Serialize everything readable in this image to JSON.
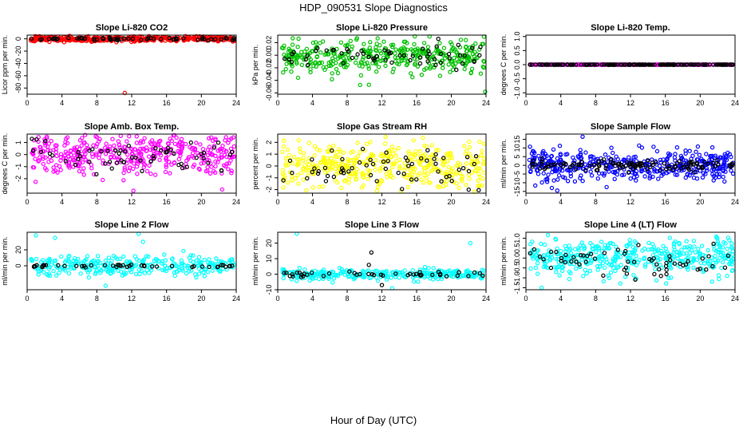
{
  "figure": {
    "title": "HDP_090531  Slope Diagnostics",
    "xlabel": "Hour of Day (UTC)"
  },
  "chart_data": [
    {
      "type": "scatter",
      "title": "Slope Li-820 CO2",
      "ylabel": "Licor ppm per min.",
      "xlim": [
        0,
        24
      ],
      "ylim": [
        -90,
        6
      ],
      "xticks": [
        0,
        4,
        8,
        12,
        16,
        20,
        24
      ],
      "yticks": [
        0,
        -20,
        -40,
        -60,
        -80
      ],
      "color": "#ff0000",
      "center": 0,
      "spread": 2.2,
      "black_center": 0,
      "black_spread": 1.2,
      "n_main": 420,
      "n_black": 60,
      "seed": 11,
      "outliers": [
        {
          "x": 11.2,
          "y": -88,
          "c": "#ff0000"
        }
      ]
    },
    {
      "type": "scatter",
      "title": "Slope Li-820 Pressure",
      "ylabel": "kPa per min.",
      "xlim": [
        0,
        24
      ],
      "ylim": [
        -0.062,
        0.032
      ],
      "xticks": [
        0,
        4,
        8,
        12,
        16,
        20,
        24
      ],
      "yticks": [
        0.02,
        0.0,
        -0.02,
        -0.04,
        -0.06
      ],
      "color": "#00c000",
      "center": 0.0,
      "spread": 0.013,
      "black_center": -0.001,
      "black_spread": 0.008,
      "n_main": 400,
      "n_black": 60,
      "seed": 23,
      "outliers": [
        {
          "x": 23.9,
          "y": -0.058,
          "c": "#00c000"
        },
        {
          "x": 10.5,
          "y": -0.047,
          "c": "#00c000"
        },
        {
          "x": 18.5,
          "y": 0.026,
          "c": "#000000"
        }
      ]
    },
    {
      "type": "scatter",
      "title": "Slope Li-820 Temp.",
      "ylabel": "degrees C per min.",
      "xlim": [
        0,
        24
      ],
      "ylim": [
        -1.05,
        1.05
      ],
      "xticks": [
        0,
        4,
        8,
        12,
        16,
        20,
        24
      ],
      "yticks": [
        1.0,
        0.5,
        0.0,
        -0.5,
        -1.0
      ],
      "color": "#ff00ff",
      "center": 0.0,
      "spread": 0.003,
      "black_center": 0.0,
      "black_spread": 0.002,
      "n_main": 300,
      "n_black": 180,
      "seed": 37,
      "outliers": []
    },
    {
      "type": "scatter",
      "title": "Slope Amb. Box Temp.",
      "ylabel": "degrees C per min.",
      "xlim": [
        0,
        24
      ],
      "ylim": [
        -3.2,
        1.7
      ],
      "xticks": [
        0,
        4,
        8,
        12,
        16,
        20,
        24
      ],
      "yticks": [
        1,
        0,
        -1,
        -2
      ],
      "color": "#ff00ff",
      "center": 0.0,
      "spread": 0.9,
      "black_center": 0.0,
      "black_spread": 0.7,
      "n_main": 420,
      "n_black": 60,
      "seed": 41,
      "outliers": [
        {
          "x": 12.2,
          "y": -3.0,
          "c": "#ff00ff"
        }
      ]
    },
    {
      "type": "scatter",
      "title": "Slope Gas Stream RH",
      "ylabel": "percent per min.",
      "xlim": [
        0,
        24
      ],
      "ylim": [
        -2.3,
        2.7
      ],
      "xticks": [
        0,
        4,
        8,
        12,
        16,
        20,
        24
      ],
      "yticks": [
        2,
        1,
        0,
        -1,
        -2
      ],
      "color": "#ffff00",
      "center": 0.0,
      "spread": 1.0,
      "black_center": 0.0,
      "black_spread": 0.8,
      "n_main": 420,
      "n_black": 60,
      "seed": 53,
      "outliers": [
        {
          "x": 22.0,
          "y": -2.0,
          "c": "#000000"
        }
      ]
    },
    {
      "type": "scatter",
      "title": "Slope Sample Flow",
      "ylabel": "ml/min per min.",
      "xlim": [
        0,
        24
      ],
      "ylim": [
        -16,
        18
      ],
      "xticks": [
        0,
        4,
        8,
        12,
        16,
        20,
        24
      ],
      "yticks": [
        15,
        10,
        5,
        0,
        -5,
        -10,
        -15
      ],
      "color": "#0000ff",
      "center": 0.0,
      "spread": 4.0,
      "black_center": 0.0,
      "black_spread": 1.5,
      "n_main": 420,
      "n_black": 120,
      "seed": 67,
      "outliers": [
        {
          "x": 3.6,
          "y": -14.5,
          "c": "#0000ff"
        },
        {
          "x": 6.5,
          "y": 16.5,
          "c": "#0000ff"
        }
      ]
    },
    {
      "type": "scatter",
      "title": "Slope Line 2 Flow",
      "ylabel": "ml/min per min.",
      "xlim": [
        0,
        24
      ],
      "ylim": [
        -30,
        42
      ],
      "xticks": [
        0,
        4,
        8,
        12,
        16,
        20,
        24
      ],
      "yticks": [
        20,
        0
      ],
      "color": "#00ffff",
      "center": 0.0,
      "spread": 6.0,
      "black_center": 0.0,
      "black_spread": 1.0,
      "n_main": 300,
      "n_black": 45,
      "seed": 79,
      "outliers": [
        {
          "x": 1.0,
          "y": 38,
          "c": "#00ffff"
        },
        {
          "x": 3.2,
          "y": 35,
          "c": "#00ffff"
        },
        {
          "x": 12.8,
          "y": 40,
          "c": "#00ffff"
        },
        {
          "x": 13.3,
          "y": 30,
          "c": "#00ffff"
        },
        {
          "x": 9.0,
          "y": -25,
          "c": "#00ffff"
        }
      ]
    },
    {
      "type": "scatter",
      "title": "Slope Line 3 Flow",
      "ylabel": "ml/min per min.",
      "xlim": [
        0,
        24
      ],
      "ylim": [
        -10,
        27
      ],
      "xticks": [
        0,
        4,
        8,
        12,
        16,
        20,
        24
      ],
      "yticks": [
        20,
        10,
        0,
        -10
      ],
      "color": "#00ffff",
      "center": 0.0,
      "spread": 1.6,
      "black_center": 0.0,
      "black_spread": 1.0,
      "n_main": 300,
      "n_black": 45,
      "seed": 83,
      "outliers": [
        {
          "x": 2.2,
          "y": 26,
          "c": "#00ffff"
        },
        {
          "x": 22.2,
          "y": 20,
          "c": "#00ffff"
        },
        {
          "x": 10.8,
          "y": 14,
          "c": "#000000"
        },
        {
          "x": 10.5,
          "y": 6,
          "c": "#000000"
        },
        {
          "x": 12.0,
          "y": -7,
          "c": "#000000"
        },
        {
          "x": 13.2,
          "y": -9,
          "c": "#00ffff"
        }
      ]
    },
    {
      "type": "scatter",
      "title": "Slope Line 4 (LT) Flow",
      "ylabel": "ml/min per min.",
      "xlim": [
        0,
        24
      ],
      "ylim": [
        -1.6,
        1.3
      ],
      "xticks": [
        0,
        4,
        8,
        12,
        16,
        20,
        24
      ],
      "yticks": [
        1.0,
        0.5,
        0.0,
        -0.5,
        -1.0,
        -1.5
      ],
      "color": "#00ffff",
      "center": 0.0,
      "spread": 0.5,
      "black_center": 0.0,
      "black_spread": 0.45,
      "n_main": 420,
      "n_black": 60,
      "seed": 97,
      "outliers": [
        {
          "x": 1.8,
          "y": -1.5,
          "c": "#00ffff"
        }
      ]
    }
  ]
}
